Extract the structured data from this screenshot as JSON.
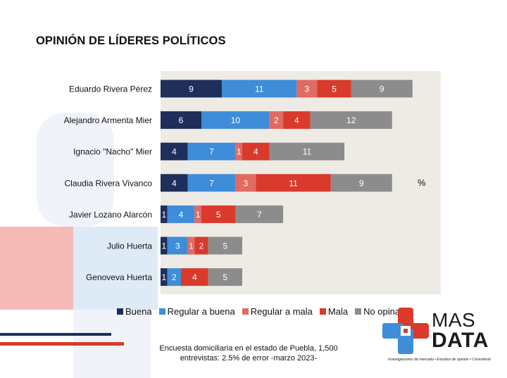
{
  "title": "OPINIÓN DE LÍDERES POLÍTICOS",
  "unit_label": "%",
  "footnote": {
    "line1": "Encuesta domiciliaria en el estado de Puebla, 1,500",
    "line2": "entrevistas: 2.5% de error -marzo 2023-"
  },
  "logo": {
    "word1": "MAS",
    "word2": "DATA",
    "tagline": "Investigaciones de mercado • Estudios de opinión • Consultoría",
    "colors": {
      "red": "#d93a2b",
      "blue": "#3f8dd8",
      "white": "#ffffff"
    }
  },
  "colors": {
    "plot_background": "#eeebe5",
    "deco_red": "#e8746c",
    "deco_blue": "#cfe0f3",
    "deco_navy": "#1f2e5a"
  },
  "chart_data": {
    "type": "bar",
    "orientation": "horizontal",
    "stacked": true,
    "categories": [
      "Eduardo Rivera Pérez",
      "Alejandro Armenta Mier",
      "Ignacio \"Nacho\" Mier",
      "Claudia Rivera Vivanco",
      "Javier Lozano Alarcón",
      "Julio Huerta",
      "Genoveva Huerta"
    ],
    "series": [
      {
        "name": "Buena",
        "color": "#1f2e5a",
        "values": [
          9,
          6,
          4,
          4,
          1,
          1,
          1
        ]
      },
      {
        "name": "Regular a buena",
        "color": "#3f8dd8",
        "values": [
          11,
          10,
          7,
          7,
          4,
          3,
          2
        ]
      },
      {
        "name": "Regular a mala",
        "color": "#e06b63",
        "values": [
          3,
          2,
          1,
          3,
          1,
          1,
          0
        ]
      },
      {
        "name": "Mala",
        "color": "#d93a2b",
        "values": [
          5,
          4,
          4,
          11,
          5,
          2,
          4
        ]
      },
      {
        "name": "No opina",
        "color": "#8c8c8c",
        "values": [
          9,
          12,
          11,
          9,
          7,
          5,
          5
        ]
      }
    ],
    "legend_position": "bottom",
    "xlabel": "",
    "ylabel": "",
    "grid": false
  }
}
